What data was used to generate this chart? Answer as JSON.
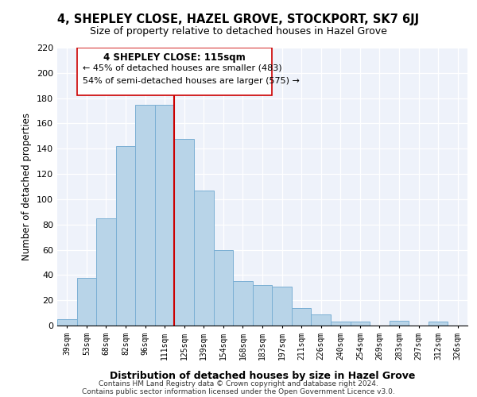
{
  "title": "4, SHEPLEY CLOSE, HAZEL GROVE, STOCKPORT, SK7 6JJ",
  "subtitle": "Size of property relative to detached houses in Hazel Grove",
  "xlabel": "Distribution of detached houses by size in Hazel Grove",
  "ylabel": "Number of detached properties",
  "bin_labels": [
    "39sqm",
    "53sqm",
    "68sqm",
    "82sqm",
    "96sqm",
    "111sqm",
    "125sqm",
    "139sqm",
    "154sqm",
    "168sqm",
    "183sqm",
    "197sqm",
    "211sqm",
    "226sqm",
    "240sqm",
    "254sqm",
    "269sqm",
    "283sqm",
    "297sqm",
    "312sqm",
    "326sqm"
  ],
  "bin_values": [
    5,
    38,
    85,
    142,
    175,
    175,
    148,
    107,
    60,
    35,
    32,
    31,
    14,
    9,
    3,
    3,
    0,
    4,
    0,
    3,
    0
  ],
  "bar_color": "#b8d4e8",
  "bar_edge_color": "#7bafd4",
  "vline_color": "#cc0000",
  "ylim": [
    0,
    220
  ],
  "yticks": [
    0,
    20,
    40,
    60,
    80,
    100,
    120,
    140,
    160,
    180,
    200,
    220
  ],
  "annotation_title": "4 SHEPLEY CLOSE: 115sqm",
  "annotation_line1": "← 45% of detached houses are smaller (483)",
  "annotation_line2": "54% of semi-detached houses are larger (575) →",
  "footer_line1": "Contains HM Land Registry data © Crown copyright and database right 2024.",
  "footer_line2": "Contains public sector information licensed under the Open Government Licence v3.0.",
  "bg_color": "#eef2fa"
}
